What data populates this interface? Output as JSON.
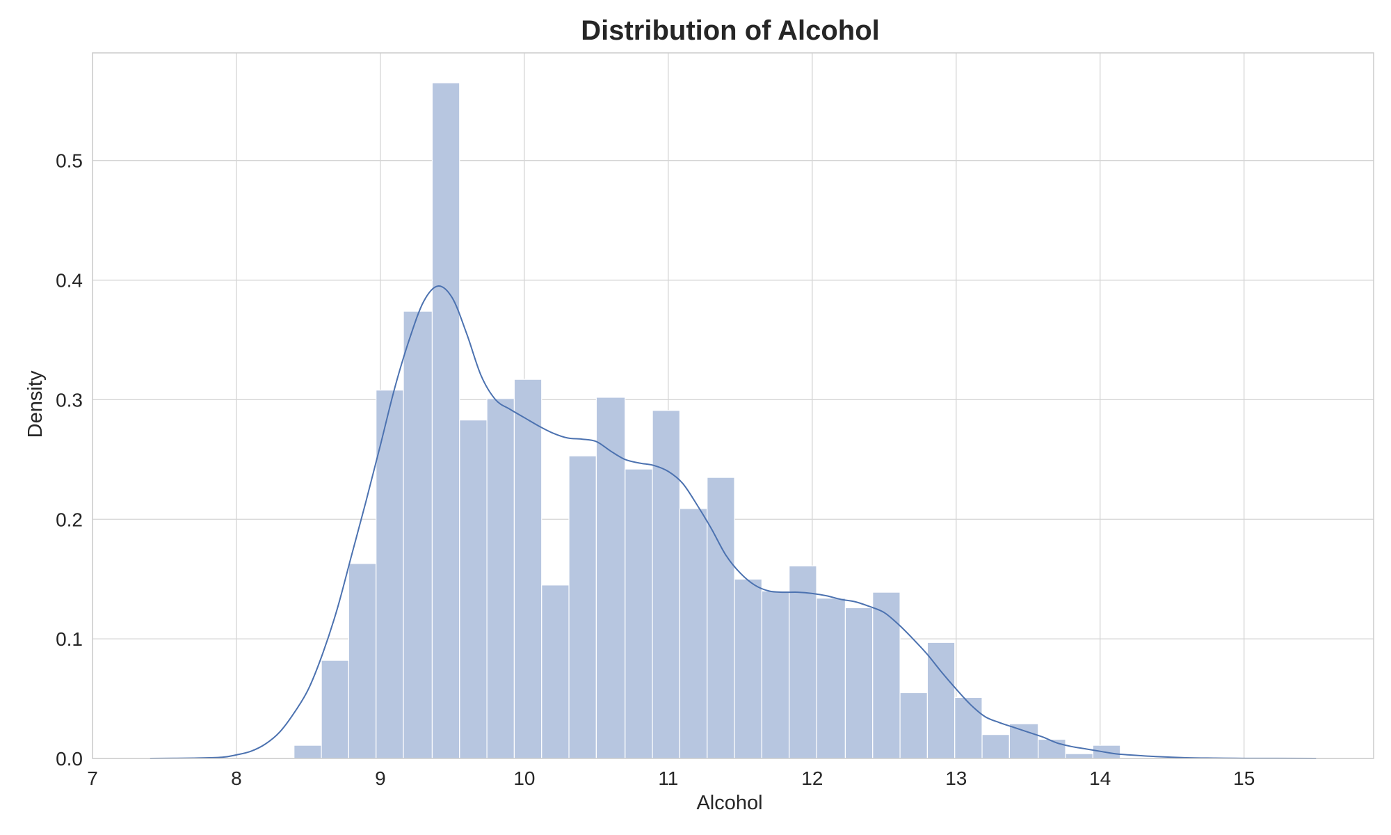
{
  "chart_data": {
    "type": "bar",
    "title": "Distribution of Alcohol",
    "xlabel": "Alcohol",
    "ylabel": "Density",
    "xlim": [
      7,
      15.9
    ],
    "ylim": [
      0,
      0.59
    ],
    "xticks": [
      7,
      8,
      9,
      10,
      11,
      12,
      13,
      14,
      15
    ],
    "yticks": [
      0.0,
      0.1,
      0.2,
      0.3,
      0.4,
      0.5
    ],
    "grid": true,
    "bar_color": "#b7c6e0",
    "kde_color": "#4c72b0",
    "bins": [
      {
        "x0": 8.4,
        "x1": 8.59,
        "density": 0.011
      },
      {
        "x0": 8.59,
        "x1": 8.78,
        "density": 0.082
      },
      {
        "x0": 8.78,
        "x1": 8.97,
        "density": 0.163
      },
      {
        "x0": 8.97,
        "x1": 9.16,
        "density": 0.308
      },
      {
        "x0": 9.16,
        "x1": 9.36,
        "density": 0.374
      },
      {
        "x0": 9.36,
        "x1": 9.55,
        "density": 0.565
      },
      {
        "x0": 9.55,
        "x1": 9.74,
        "density": 0.283
      },
      {
        "x0": 9.74,
        "x1": 9.93,
        "density": 0.301
      },
      {
        "x0": 9.93,
        "x1": 10.12,
        "density": 0.317
      },
      {
        "x0": 10.12,
        "x1": 10.31,
        "density": 0.145
      },
      {
        "x0": 10.31,
        "x1": 10.5,
        "density": 0.253
      },
      {
        "x0": 10.5,
        "x1": 10.7,
        "density": 0.302
      },
      {
        "x0": 10.7,
        "x1": 10.89,
        "density": 0.242
      },
      {
        "x0": 10.89,
        "x1": 11.08,
        "density": 0.291
      },
      {
        "x0": 11.08,
        "x1": 11.27,
        "density": 0.209
      },
      {
        "x0": 11.27,
        "x1": 11.46,
        "density": 0.235
      },
      {
        "x0": 11.46,
        "x1": 11.65,
        "density": 0.15
      },
      {
        "x0": 11.65,
        "x1": 11.84,
        "density": 0.14
      },
      {
        "x0": 11.84,
        "x1": 12.03,
        "density": 0.161
      },
      {
        "x0": 12.03,
        "x1": 12.23,
        "density": 0.134
      },
      {
        "x0": 12.23,
        "x1": 12.42,
        "density": 0.126
      },
      {
        "x0": 12.42,
        "x1": 12.61,
        "density": 0.139
      },
      {
        "x0": 12.61,
        "x1": 12.8,
        "density": 0.055
      },
      {
        "x0": 12.8,
        "x1": 12.99,
        "density": 0.097
      },
      {
        "x0": 12.99,
        "x1": 13.18,
        "density": 0.051
      },
      {
        "x0": 13.18,
        "x1": 13.37,
        "density": 0.02
      },
      {
        "x0": 13.37,
        "x1": 13.57,
        "density": 0.029
      },
      {
        "x0": 13.57,
        "x1": 13.76,
        "density": 0.016
      },
      {
        "x0": 13.76,
        "x1": 13.95,
        "density": 0.004
      },
      {
        "x0": 13.95,
        "x1": 14.14,
        "density": 0.011
      }
    ],
    "kde": [
      [
        7.4,
        0.0
      ],
      [
        7.7,
        0.0003
      ],
      [
        7.9,
        0.001
      ],
      [
        8.0,
        0.003
      ],
      [
        8.1,
        0.006
      ],
      [
        8.2,
        0.012
      ],
      [
        8.3,
        0.022
      ],
      [
        8.4,
        0.038
      ],
      [
        8.5,
        0.058
      ],
      [
        8.6,
        0.088
      ],
      [
        8.7,
        0.125
      ],
      [
        8.8,
        0.17
      ],
      [
        8.9,
        0.215
      ],
      [
        9.0,
        0.262
      ],
      [
        9.1,
        0.31
      ],
      [
        9.2,
        0.35
      ],
      [
        9.3,
        0.382
      ],
      [
        9.4,
        0.395
      ],
      [
        9.5,
        0.385
      ],
      [
        9.6,
        0.355
      ],
      [
        9.7,
        0.32
      ],
      [
        9.8,
        0.3
      ],
      [
        9.9,
        0.292
      ],
      [
        10.0,
        0.285
      ],
      [
        10.1,
        0.278
      ],
      [
        10.2,
        0.272
      ],
      [
        10.3,
        0.268
      ],
      [
        10.4,
        0.267
      ],
      [
        10.5,
        0.265
      ],
      [
        10.6,
        0.257
      ],
      [
        10.7,
        0.25
      ],
      [
        10.8,
        0.247
      ],
      [
        10.9,
        0.245
      ],
      [
        11.0,
        0.24
      ],
      [
        11.1,
        0.23
      ],
      [
        11.2,
        0.212
      ],
      [
        11.3,
        0.192
      ],
      [
        11.4,
        0.17
      ],
      [
        11.5,
        0.155
      ],
      [
        11.6,
        0.145
      ],
      [
        11.7,
        0.14
      ],
      [
        11.8,
        0.139
      ],
      [
        11.9,
        0.139
      ],
      [
        12.0,
        0.138
      ],
      [
        12.1,
        0.136
      ],
      [
        12.2,
        0.133
      ],
      [
        12.3,
        0.131
      ],
      [
        12.4,
        0.127
      ],
      [
        12.5,
        0.122
      ],
      [
        12.6,
        0.112
      ],
      [
        12.7,
        0.1
      ],
      [
        12.8,
        0.087
      ],
      [
        12.9,
        0.072
      ],
      [
        13.0,
        0.058
      ],
      [
        13.1,
        0.045
      ],
      [
        13.2,
        0.035
      ],
      [
        13.3,
        0.03
      ],
      [
        13.4,
        0.026
      ],
      [
        13.5,
        0.022
      ],
      [
        13.6,
        0.018
      ],
      [
        13.7,
        0.013
      ],
      [
        13.8,
        0.01
      ],
      [
        13.9,
        0.008
      ],
      [
        14.0,
        0.006
      ],
      [
        14.1,
        0.004
      ],
      [
        14.2,
        0.003
      ],
      [
        14.4,
        0.0015
      ],
      [
        14.6,
        0.0006
      ],
      [
        14.8,
        0.0003
      ],
      [
        15.0,
        0.0001
      ],
      [
        15.5,
        0.0
      ]
    ]
  }
}
